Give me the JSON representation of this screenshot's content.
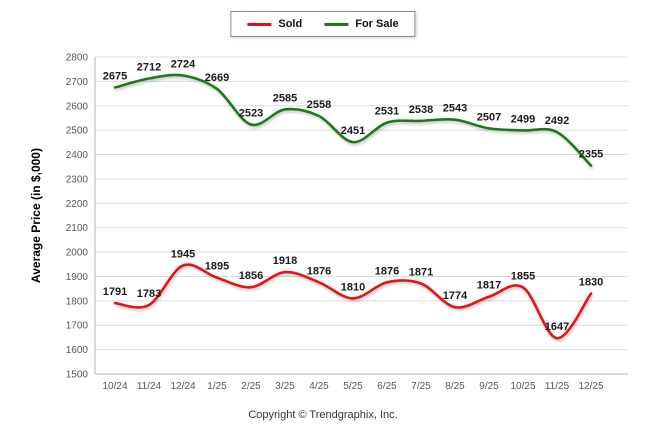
{
  "chart_data": {
    "type": "line",
    "title": "",
    "categories": [
      "10/24",
      "11/24",
      "12/24",
      "1/25",
      "2/25",
      "3/25",
      "4/25",
      "5/25",
      "6/25",
      "7/25",
      "8/25",
      "9/25",
      "10/25",
      "11/25",
      "12/25"
    ],
    "series": [
      {
        "name": "Sold",
        "color": "#e31212",
        "values": [
          1791,
          1783,
          1945,
          1895,
          1856,
          1918,
          1876,
          1810,
          1876,
          1871,
          1774,
          1817,
          1855,
          1647,
          1830
        ]
      },
      {
        "name": "For Sale",
        "color": "#1f7a1f",
        "values": [
          2675,
          2712,
          2724,
          2669,
          2523,
          2585,
          2558,
          2451,
          2531,
          2538,
          2543,
          2507,
          2499,
          2492,
          2355
        ]
      }
    ],
    "xlabel": "",
    "ylabel": "Average Price (in $,000)",
    "ylim": [
      1500,
      2800
    ],
    "ytick_step": 100,
    "grid": true,
    "legend_position": "top",
    "data_labels": true
  },
  "footer": {
    "copyright": "Copyright © Trendgraphix, Inc."
  }
}
